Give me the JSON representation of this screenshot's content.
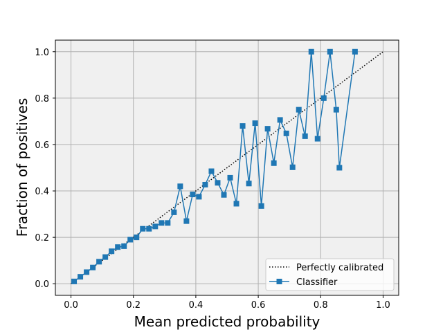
{
  "chart_data": {
    "type": "line",
    "title": "",
    "xlabel": "Mean predicted probability",
    "ylabel": "Fraction of positives",
    "xlim": [
      -0.05,
      1.05
    ],
    "ylim": [
      -0.05,
      1.05
    ],
    "xticks": [
      "0.0",
      "0.2",
      "0.4",
      "0.6",
      "0.8",
      "1.0"
    ],
    "yticks": [
      "0.0",
      "0.2",
      "0.4",
      "0.6",
      "0.8",
      "1.0"
    ],
    "grid": true,
    "legend_position": "lower-right",
    "background_color": "#f0f0f0",
    "series": [
      {
        "name": "Perfectly calibrated",
        "style": "dotted",
        "color": "#000000",
        "points": [
          [
            0,
            0
          ],
          [
            1,
            1
          ]
        ]
      },
      {
        "name": "Classifier",
        "style": "solid-square-markers",
        "color": "#1f77b4",
        "points": [
          [
            0.01,
            0.01
          ],
          [
            0.03,
            0.03
          ],
          [
            0.05,
            0.05
          ],
          [
            0.07,
            0.07
          ],
          [
            0.09,
            0.095
          ],
          [
            0.11,
            0.115
          ],
          [
            0.13,
            0.14
          ],
          [
            0.15,
            0.158
          ],
          [
            0.17,
            0.162
          ],
          [
            0.19,
            0.19
          ],
          [
            0.21,
            0.2
          ],
          [
            0.23,
            0.237
          ],
          [
            0.25,
            0.237
          ],
          [
            0.27,
            0.247
          ],
          [
            0.29,
            0.262
          ],
          [
            0.31,
            0.262
          ],
          [
            0.33,
            0.308
          ],
          [
            0.35,
            0.42
          ],
          [
            0.37,
            0.27
          ],
          [
            0.39,
            0.385
          ],
          [
            0.41,
            0.375
          ],
          [
            0.43,
            0.427
          ],
          [
            0.45,
            0.485
          ],
          [
            0.47,
            0.435
          ],
          [
            0.49,
            0.383
          ],
          [
            0.51,
            0.457
          ],
          [
            0.53,
            0.345
          ],
          [
            0.55,
            0.68
          ],
          [
            0.57,
            0.432
          ],
          [
            0.59,
            0.692
          ],
          [
            0.61,
            0.335
          ],
          [
            0.63,
            0.668
          ],
          [
            0.65,
            0.52
          ],
          [
            0.67,
            0.706
          ],
          [
            0.69,
            0.648
          ],
          [
            0.71,
            0.502
          ],
          [
            0.73,
            0.75
          ],
          [
            0.75,
            0.636
          ],
          [
            0.77,
            1.0
          ],
          [
            0.79,
            0.625
          ],
          [
            0.81,
            0.8
          ],
          [
            0.83,
            1.0
          ],
          [
            0.85,
            0.75
          ],
          [
            0.86,
            0.5
          ],
          [
            0.91,
            1.0
          ]
        ]
      }
    ]
  }
}
